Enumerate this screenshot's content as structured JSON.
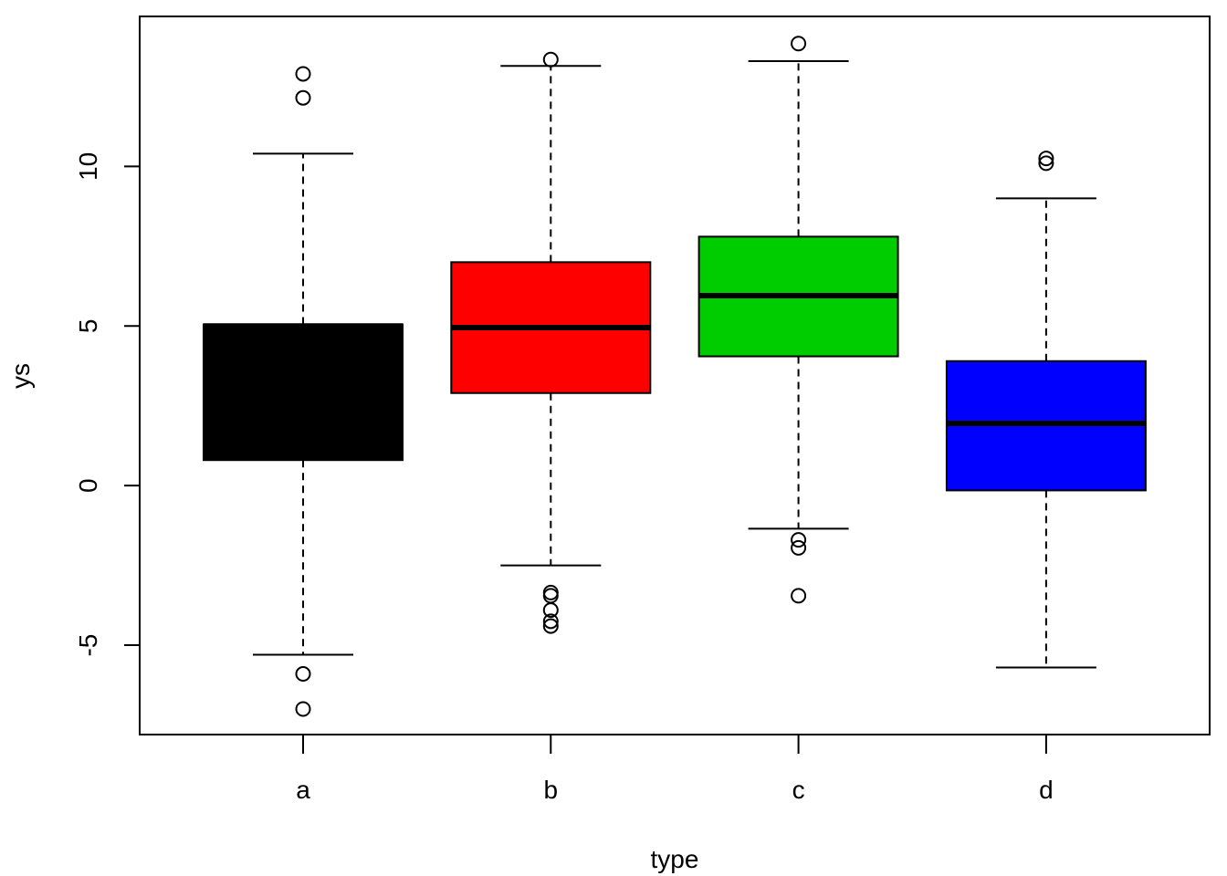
{
  "chart_data": {
    "type": "box",
    "xlabel": "type",
    "ylabel": "ys",
    "ylim": [
      -7.8,
      14.7
    ],
    "yticks": [
      -5,
      0,
      5,
      10
    ],
    "yticks_text": [
      "-5",
      "0",
      "5",
      "10"
    ],
    "grid": false,
    "legend": "none",
    "categories": [
      "a",
      "b",
      "c",
      "d"
    ],
    "boxes": [
      {
        "category": "a",
        "color": "#000000",
        "whisker_low": -5.3,
        "q1": 0.8,
        "median": 5.0,
        "q3": 5.05,
        "whisker_high": 10.4,
        "outliers": [
          12.9,
          12.15,
          -5.9,
          -7.0
        ]
      },
      {
        "category": "b",
        "color": "#FF0000",
        "whisker_low": -2.5,
        "q1": 2.9,
        "median": 4.95,
        "q3": 7.0,
        "whisker_high": 13.15,
        "outliers": [
          13.35,
          -3.35,
          -3.45,
          -3.9,
          -4.25,
          -4.4
        ]
      },
      {
        "category": "c",
        "color": "#00CD00",
        "whisker_low": -1.35,
        "q1": 4.05,
        "median": 5.95,
        "q3": 7.8,
        "whisker_high": 13.3,
        "outliers": [
          13.85,
          -1.7,
          -1.95,
          -3.45
        ]
      },
      {
        "category": "d",
        "color": "#0000FF",
        "whisker_low": -5.7,
        "q1": -0.15,
        "median": 1.95,
        "q3": 3.9,
        "whisker_high": 9.0,
        "outliers": [
          10.25,
          10.1
        ]
      }
    ]
  }
}
